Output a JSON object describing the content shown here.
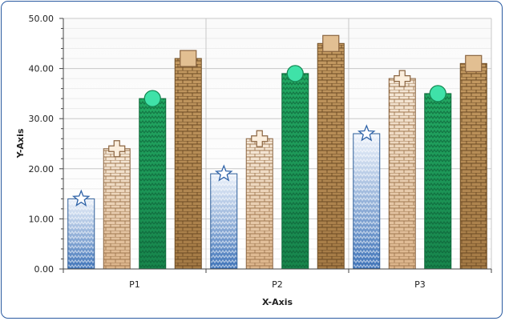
{
  "chart_data": {
    "type": "bar",
    "title": "",
    "xlabel": "X-Axis",
    "ylabel": "Y-Axis",
    "ylim": [
      0,
      50
    ],
    "y_ticks": [
      "0.00",
      "10.00",
      "20.00",
      "30.00",
      "40.00",
      "50.00"
    ],
    "categories": [
      "P1",
      "P2",
      "P3"
    ],
    "grid": true,
    "legend": "none",
    "series": [
      {
        "values": [
          14,
          19,
          27
        ],
        "color": "#4a7ec4",
        "pattern": "zigzag",
        "marker": "star-icon"
      },
      {
        "values": [
          24,
          26,
          38
        ],
        "color": "#d8b58e",
        "pattern": "brick",
        "marker": "plus-icon"
      },
      {
        "values": [
          34,
          39,
          35
        ],
        "color": "#1e9a5a",
        "pattern": "zigzag",
        "marker": "circle-icon"
      },
      {
        "values": [
          42,
          45,
          41
        ],
        "color": "#b08650",
        "pattern": "brick",
        "marker": "square-icon"
      }
    ]
  }
}
